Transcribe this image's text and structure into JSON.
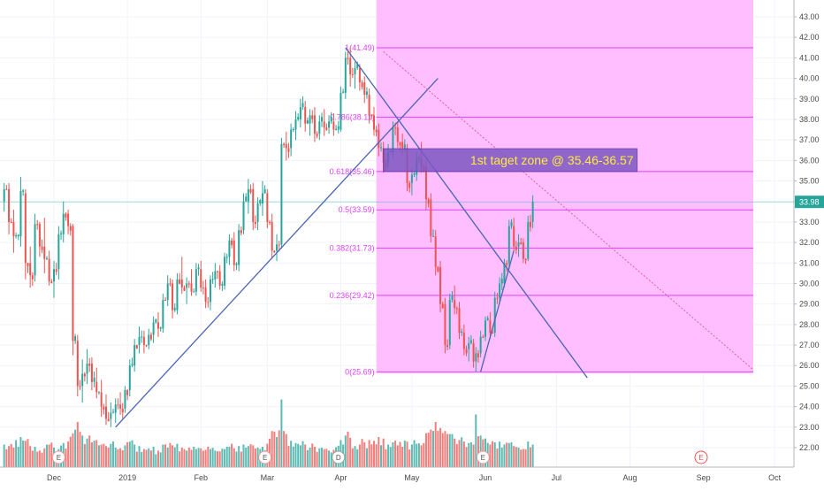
{
  "chart_data": {
    "type": "candlestick",
    "ylim": [
      21.3,
      43.5
    ],
    "xlim_days": [
      -21,
      305
    ],
    "price_axis": {
      "ticks": [
        22.0,
        23.0,
        24.0,
        25.0,
        26.0,
        27.0,
        28.0,
        29.0,
        30.0,
        31.0,
        32.0,
        33.0,
        34.0,
        35.0,
        36.0,
        37.0,
        38.0,
        39.0,
        40.0,
        41.0,
        42.0,
        43.0
      ],
      "last_price": 33.98,
      "last_price_color": "#26a69a"
    },
    "time_axis": {
      "labels": [
        {
          "label": "Dec",
          "day": 0
        },
        {
          "label": "2019",
          "day": 31
        },
        {
          "label": "Feb",
          "day": 62
        },
        {
          "label": "Mar",
          "day": 90
        },
        {
          "label": "Apr",
          "day": 121
        },
        {
          "label": "May",
          "day": 151
        },
        {
          "label": "Jun",
          "day": 182
        },
        {
          "label": "Jul",
          "day": 212
        },
        {
          "label": "Aug",
          "day": 243
        },
        {
          "label": "Sep",
          "day": 274
        },
        {
          "label": "Oct",
          "day": 304
        }
      ]
    },
    "colors": {
      "up": "#26a69a",
      "down": "#ef5350",
      "fib": "#e040fb",
      "zone": "#ffbbff",
      "trend": "#4a64b4",
      "target_box": "#7e57c2",
      "target_text": "#ffeb3b"
    },
    "candle_anchors": [
      [
        -21,
        34.0,
        34.9,
        33.5,
        34.6,
        30
      ],
      [
        -19,
        34.6,
        34.9,
        32.4,
        33.0,
        28
      ],
      [
        -17,
        33.0,
        33.6,
        31.5,
        32.3,
        26
      ],
      [
        -14,
        32.3,
        35.2,
        31.8,
        34.5,
        40
      ],
      [
        -12,
        34.4,
        34.6,
        30.2,
        31.0,
        35
      ],
      [
        -10,
        31.0,
        31.8,
        29.8,
        30.4,
        28
      ],
      [
        -8,
        30.4,
        33.4,
        30.1,
        32.9,
        27
      ],
      [
        -6,
        32.9,
        33.0,
        31.3,
        31.8,
        22
      ],
      [
        -4,
        31.8,
        33.2,
        30.5,
        31.2,
        25
      ],
      [
        -2,
        31.2,
        31.6,
        29.9,
        30.1,
        30
      ],
      [
        0,
        30.1,
        31.1,
        29.3,
        30.7,
        26
      ],
      [
        2,
        30.7,
        32.8,
        30.2,
        32.4,
        24
      ],
      [
        4,
        32.4,
        34.0,
        32.0,
        33.4,
        32
      ],
      [
        6,
        33.4,
        33.6,
        32.4,
        32.8,
        34
      ],
      [
        8,
        32.8,
        32.9,
        26.5,
        27.2,
        45
      ],
      [
        10,
        27.2,
        27.5,
        24.5,
        25.0,
        60
      ],
      [
        12,
        25.0,
        26.3,
        24.2,
        25.6,
        42
      ],
      [
        14,
        25.6,
        26.8,
        25.1,
        26.1,
        38
      ],
      [
        16,
        26.1,
        26.4,
        24.8,
        25.2,
        33
      ],
      [
        18,
        25.2,
        25.9,
        24.4,
        24.7,
        36
      ],
      [
        20,
        24.7,
        25.3,
        23.5,
        24.0,
        30
      ],
      [
        22,
        24.0,
        24.6,
        23.1,
        23.4,
        28
      ],
      [
        24,
        23.4,
        24.2,
        23.0,
        23.7,
        31
      ],
      [
        26,
        23.7,
        24.4,
        23.2,
        24.1,
        26
      ],
      [
        28,
        24.1,
        24.7,
        23.6,
        23.9,
        25
      ],
      [
        30,
        23.9,
        25.0,
        23.7,
        24.8,
        29
      ],
      [
        32,
        24.8,
        26.3,
        24.5,
        26.0,
        34
      ],
      [
        34,
        26.0,
        27.3,
        25.7,
        27.0,
        30
      ],
      [
        36,
        27.0,
        27.9,
        26.6,
        27.4,
        28
      ],
      [
        38,
        27.4,
        27.7,
        26.6,
        27.0,
        24
      ],
      [
        40,
        27.0,
        27.8,
        26.8,
        27.5,
        25
      ],
      [
        42,
        27.5,
        28.4,
        27.1,
        28.1,
        27
      ],
      [
        44,
        28.1,
        28.6,
        27.4,
        27.8,
        22
      ],
      [
        46,
        27.8,
        29.5,
        27.6,
        29.2,
        30
      ],
      [
        48,
        29.2,
        30.4,
        28.9,
        30.0,
        26
      ],
      [
        50,
        30.0,
        30.2,
        28.3,
        28.7,
        29
      ],
      [
        52,
        28.7,
        30.5,
        28.5,
        30.2,
        31
      ],
      [
        54,
        30.2,
        31.3,
        29.5,
        29.8,
        26
      ],
      [
        56,
        29.8,
        30.3,
        29.0,
        30.0,
        22
      ],
      [
        58,
        30.0,
        30.7,
        29.4,
        29.6,
        23
      ],
      [
        60,
        29.6,
        31.0,
        29.4,
        30.7,
        24
      ],
      [
        62,
        30.7,
        31.1,
        29.6,
        29.8,
        25
      ],
      [
        64,
        29.8,
        30.2,
        28.8,
        29.1,
        23
      ],
      [
        66,
        29.1,
        30.4,
        28.7,
        30.2,
        24
      ],
      [
        68,
        30.2,
        31.0,
        29.8,
        30.6,
        22
      ],
      [
        70,
        30.6,
        30.9,
        29.7,
        29.9,
        21
      ],
      [
        72,
        29.9,
        31.5,
        29.7,
        31.3,
        24
      ],
      [
        74,
        31.3,
        32.4,
        30.9,
        32.1,
        27
      ],
      [
        76,
        32.1,
        32.5,
        30.6,
        30.9,
        25
      ],
      [
        78,
        30.9,
        32.9,
        30.6,
        32.6,
        28
      ],
      [
        80,
        32.6,
        34.4,
        32.4,
        34.0,
        30
      ],
      [
        82,
        34.0,
        35.1,
        33.4,
        34.6,
        28
      ],
      [
        84,
        34.6,
        34.9,
        32.6,
        33.0,
        29
      ],
      [
        86,
        33.0,
        34.2,
        32.6,
        33.9,
        26
      ],
      [
        88,
        33.9,
        35.0,
        33.3,
        34.4,
        27
      ],
      [
        90,
        34.4,
        34.6,
        32.7,
        33.0,
        31
      ],
      [
        92,
        33.0,
        33.4,
        31.2,
        31.6,
        48
      ],
      [
        94,
        31.6,
        32.4,
        31.1,
        31.9,
        40
      ],
      [
        96,
        31.9,
        37.1,
        31.7,
        36.8,
        90
      ],
      [
        98,
        36.8,
        37.4,
        36.0,
        36.6,
        44
      ],
      [
        100,
        36.6,
        37.8,
        36.2,
        37.5,
        35
      ],
      [
        102,
        37.5,
        38.4,
        37.0,
        38.0,
        32
      ],
      [
        104,
        38.0,
        39.0,
        37.6,
        38.6,
        29
      ],
      [
        106,
        38.6,
        38.9,
        37.4,
        37.8,
        30
      ],
      [
        108,
        37.8,
        38.5,
        37.2,
        38.2,
        26
      ],
      [
        110,
        38.2,
        38.6,
        36.9,
        37.3,
        27
      ],
      [
        112,
        37.3,
        38.2,
        37.0,
        37.9,
        25
      ],
      [
        114,
        37.9,
        38.5,
        37.2,
        37.6,
        24
      ],
      [
        116,
        37.6,
        38.2,
        37.3,
        37.9,
        22
      ],
      [
        118,
        37.9,
        38.3,
        37.2,
        37.5,
        23
      ],
      [
        121,
        37.5,
        39.6,
        37.4,
        39.3,
        36
      ],
      [
        123,
        39.3,
        41.3,
        39.0,
        41.0,
        42
      ],
      [
        125,
        41.0,
        41.5,
        39.6,
        40.2,
        39
      ],
      [
        127,
        40.2,
        40.8,
        39.5,
        40.5,
        28
      ],
      [
        129,
        40.5,
        40.7,
        39.4,
        39.8,
        30
      ],
      [
        131,
        39.8,
        40.1,
        38.8,
        39.2,
        33
      ],
      [
        133,
        39.2,
        39.5,
        37.8,
        38.2,
        36
      ],
      [
        135,
        38.2,
        38.6,
        37.2,
        37.5,
        35
      ],
      [
        137,
        37.5,
        37.8,
        36.2,
        36.6,
        40
      ],
      [
        139,
        36.6,
        36.9,
        35.4,
        35.9,
        38
      ],
      [
        141,
        35.9,
        36.8,
        35.6,
        36.4,
        30
      ],
      [
        143,
        36.4,
        37.9,
        36.1,
        37.6,
        33
      ],
      [
        145,
        37.6,
        37.9,
        36.6,
        36.9,
        29
      ],
      [
        147,
        36.9,
        37.3,
        36.3,
        36.6,
        27
      ],
      [
        149,
        36.6,
        36.8,
        34.5,
        34.9,
        34
      ],
      [
        151,
        34.9,
        35.6,
        34.3,
        35.3,
        30
      ],
      [
        153,
        35.3,
        36.4,
        35.0,
        36.1,
        31
      ],
      [
        155,
        36.1,
        36.9,
        35.4,
        35.7,
        29
      ],
      [
        157,
        35.7,
        36.0,
        33.6,
        34.1,
        45
      ],
      [
        159,
        34.1,
        34.4,
        32.0,
        32.3,
        50
      ],
      [
        161,
        32.3,
        32.6,
        30.4,
        30.8,
        60
      ],
      [
        163,
        30.8,
        31.1,
        28.6,
        29.0,
        52
      ],
      [
        165,
        29.0,
        29.3,
        26.6,
        27.0,
        48
      ],
      [
        167,
        27.0,
        29.5,
        26.8,
        29.2,
        44
      ],
      [
        169,
        29.2,
        29.9,
        28.5,
        28.8,
        38
      ],
      [
        171,
        28.8,
        29.1,
        27.3,
        27.6,
        36
      ],
      [
        173,
        27.6,
        28.0,
        26.5,
        26.8,
        34
      ],
      [
        175,
        26.8,
        27.4,
        26.2,
        27.1,
        32
      ],
      [
        177,
        27.1,
        27.3,
        25.9,
        26.2,
        30
      ],
      [
        178,
        26.2,
        26.9,
        25.7,
        26.6,
        70
      ],
      [
        180,
        26.6,
        27.7,
        26.4,
        27.4,
        42
      ],
      [
        182,
        27.4,
        28.4,
        27.2,
        28.2,
        38
      ],
      [
        184,
        28.2,
        28.6,
        27.3,
        27.6,
        30
      ],
      [
        186,
        27.6,
        29.6,
        27.4,
        29.3,
        33
      ],
      [
        188,
        29.3,
        30.3,
        29.0,
        30.0,
        34
      ],
      [
        190,
        30.0,
        31.2,
        29.8,
        31.0,
        30
      ],
      [
        192,
        31.0,
        33.1,
        30.7,
        32.8,
        32
      ],
      [
        194,
        32.8,
        33.2,
        31.6,
        31.8,
        28
      ],
      [
        196,
        31.8,
        32.4,
        31.3,
        32.0,
        26
      ],
      [
        198,
        32.0,
        32.2,
        31.0,
        31.2,
        24
      ],
      [
        200,
        31.2,
        33.3,
        31.1,
        33.0,
        34
      ],
      [
        202,
        33.0,
        34.3,
        32.7,
        33.98,
        30
      ]
    ],
    "fib_levels": [
      {
        "ratio": 0,
        "price": 25.69,
        "label": "0(25.69)"
      },
      {
        "ratio": 0.236,
        "price": 29.42,
        "label": "0.236(29.42)"
      },
      {
        "ratio": 0.382,
        "price": 31.73,
        "label": "0.382(31.73)"
      },
      {
        "ratio": 0.5,
        "price": 33.59,
        "label": "0.5(33.59)"
      },
      {
        "ratio": 0.618,
        "price": 35.46,
        "label": "0.618(35.46)"
      },
      {
        "ratio": 0.786,
        "price": 38.11,
        "label": "0.786(38.11)"
      },
      {
        "ratio": 1,
        "price": 41.49,
        "label": "1(41.49)"
      }
    ],
    "fib_zone": {
      "day_start": 136,
      "day_end": 295
    },
    "trend_lines": [
      {
        "day1": 26,
        "price1": 23.0,
        "day2": 162,
        "price2": 40.0
      },
      {
        "day1": 123,
        "price1": 41.5,
        "day2": 225,
        "price2": 25.4
      },
      {
        "day1": 180,
        "price1": 25.7,
        "day2": 194,
        "price2": 31.6
      }
    ],
    "projection_line": {
      "day1": 139,
      "price1": 41.3,
      "day2": 295,
      "price2": 25.8
    },
    "target_zone": {
      "day_start": 139,
      "day_end": 246,
      "price_low": 35.46,
      "price_high": 36.57
    },
    "target_label": "1st taget zone @ 35.46-36.57",
    "events": [
      {
        "day": 2,
        "label": "E"
      },
      {
        "day": 89,
        "label": "E"
      },
      {
        "day": 120,
        "label": "D"
      },
      {
        "day": 181,
        "label": "E"
      },
      {
        "day": 273,
        "label": "E"
      }
    ]
  }
}
